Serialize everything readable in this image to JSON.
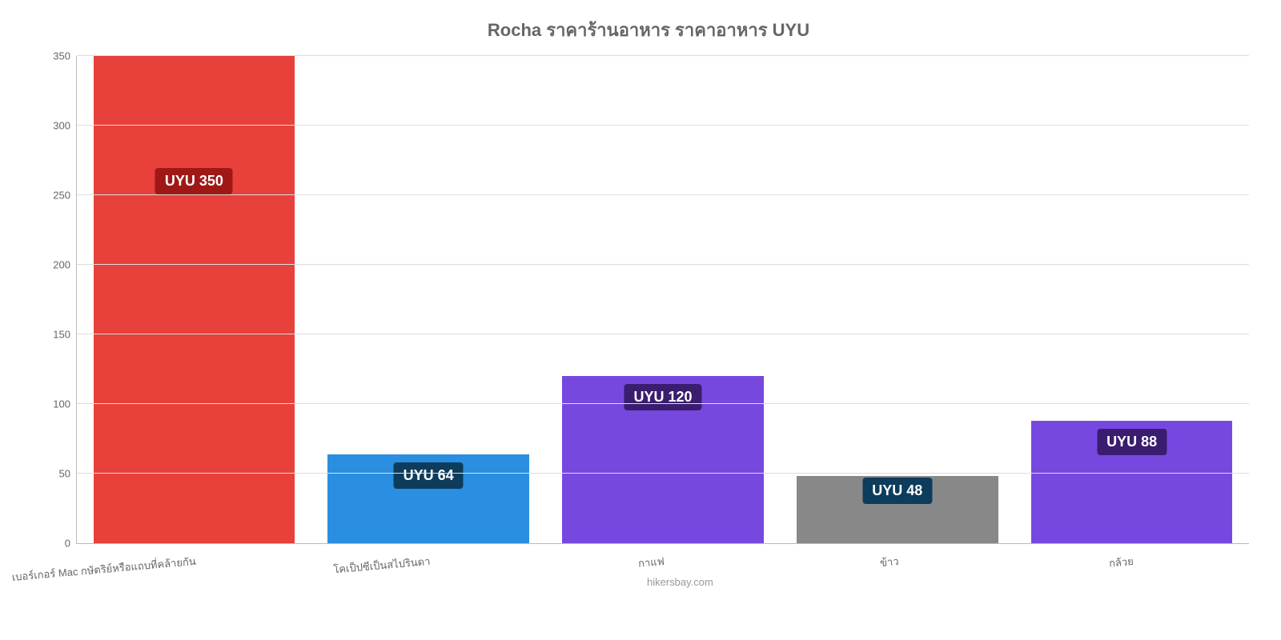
{
  "chart": {
    "type": "bar",
    "title": "Rocha ราคาร้านอาหาร ราคาอาหาร UYU",
    "title_color": "#666666",
    "title_fontsize": 22,
    "background_color": "#ffffff",
    "grid_color": "#dddddd",
    "axis_color": "#bbbbbb",
    "tick_color": "#666666",
    "tick_fontsize": 13,
    "ylim": [
      0,
      350
    ],
    "ytick_step": 50,
    "yticks": [
      0,
      50,
      100,
      150,
      200,
      250,
      300,
      350
    ],
    "categories": [
      "เบอร์เกอร์ Mac กษัตริย์หรือแถบที่คล้ายกัน",
      "โคเป็ปซีเป็นสไปรินดา",
      "กาแฟ",
      "ข้าว",
      "กล้วย"
    ],
    "values": [
      350,
      64,
      120,
      48,
      88
    ],
    "value_labels": [
      "UYU 350",
      "UYU 64",
      "UYU 120",
      "UYU 48",
      "UYU 88"
    ],
    "bar_colors": [
      "#e8403a",
      "#2a8fe0",
      "#7748e0",
      "#888888",
      "#7748e0"
    ],
    "label_bg_colors": [
      "#a01815",
      "#0d3c5c",
      "#3a1d6e",
      "#0d3c5c",
      "#3a1d6e"
    ],
    "label_text_color": "#ffffff",
    "label_fontsize": 18,
    "label_top_offsets": [
      140,
      10,
      10,
      2,
      10
    ],
    "bar_width": 0.86,
    "watermark": "hikersbay.com",
    "watermark_color": "#999999"
  }
}
